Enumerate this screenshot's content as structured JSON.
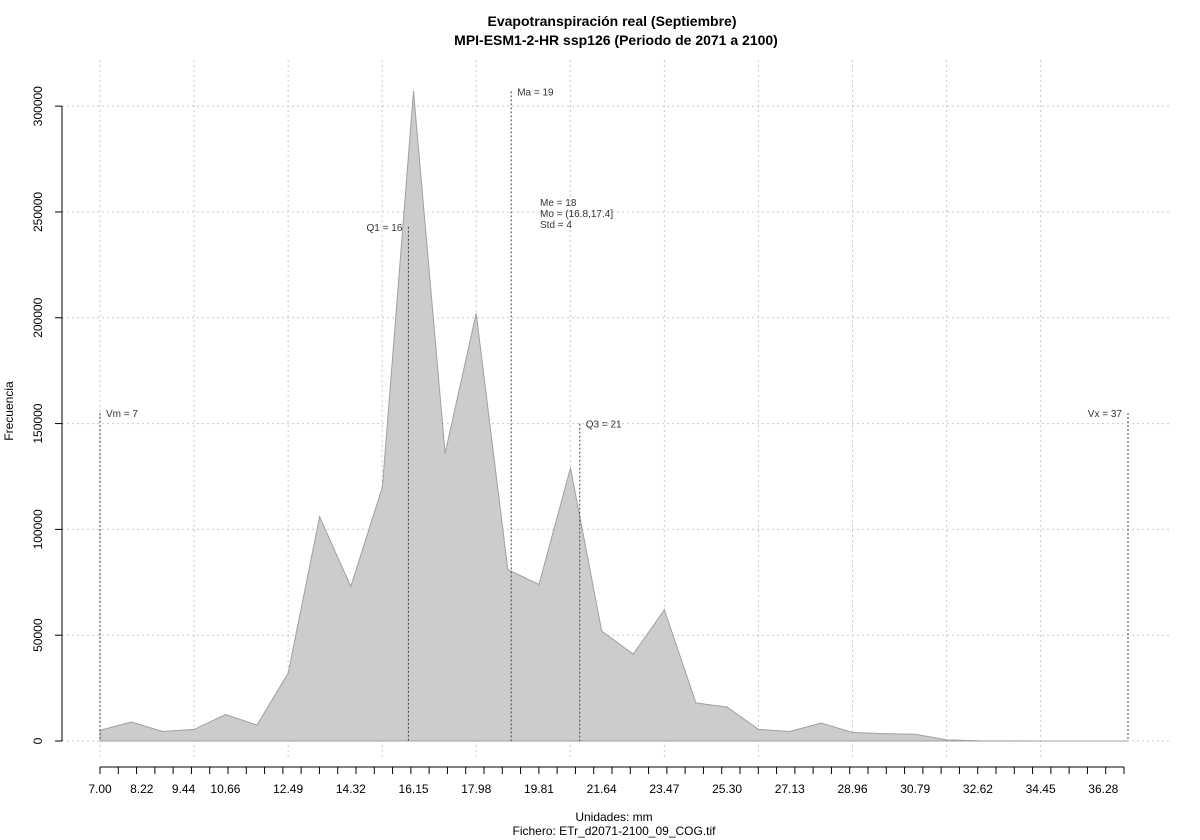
{
  "chart_data": {
    "type": "area",
    "title": "Evapotranspiración real (Septiembre)",
    "subtitle": "MPI-ESM1-2-HR ssp126 (Periodo de 2071 a 2100)",
    "xlabel": "Unidades: mm",
    "xlabel2": "Fichero: ETr_d2071-2100_09_COG.tif",
    "ylabel": "Frecuencia",
    "xlim": [
      7.0,
      37.0
    ],
    "ylim": [
      0,
      310000
    ],
    "x_ticks": [
      "7.00",
      "8.22",
      "9.44",
      "10.66",
      "12.49",
      "14.32",
      "16.15",
      "17.98",
      "19.81",
      "21.64",
      "23.47",
      "25.30",
      "27.13",
      "28.96",
      "30.79",
      "32.62",
      "34.45",
      "36.28"
    ],
    "y_ticks": [
      "0",
      "50000",
      "100000",
      "150000",
      "200000",
      "250000",
      "300000"
    ],
    "grid": true,
    "fill_color": "#cccccc",
    "series": [
      {
        "x": [
          7.0,
          7.92,
          8.83,
          9.75,
          10.66,
          11.58,
          12.49,
          13.41,
          14.32,
          15.24,
          16.15,
          17.07,
          17.98,
          18.9,
          19.81,
          20.73,
          21.64,
          22.56,
          23.47,
          24.39,
          25.3,
          26.22,
          27.13,
          28.05,
          28.96,
          29.88,
          30.79,
          31.71,
          32.62,
          33.54,
          34.45,
          35.37,
          36.28,
          37.0
        ],
        "y": [
          5000,
          9000,
          4500,
          5500,
          12500,
          7500,
          32000,
          106000,
          73000,
          120000,
          307000,
          136000,
          202000,
          81000,
          74000,
          129000,
          52000,
          41000,
          62000,
          18000,
          16000,
          5500,
          4500,
          8500,
          4000,
          3500,
          3200,
          500,
          100,
          50,
          20,
          10,
          5,
          0
        ]
      }
    ],
    "markers": [
      {
        "x": 7.0,
        "label": "Vm = 7",
        "top": 155000,
        "label_side": "right"
      },
      {
        "x": 16.0,
        "label": "Q1 = 16",
        "top": 243000,
        "label_side": "left"
      },
      {
        "x": 19.0,
        "label": "Ma = 19",
        "top": 307000,
        "label_side": "right"
      },
      {
        "x": 21.0,
        "label": "Q3 = 21",
        "top": 150000,
        "label_side": "right"
      },
      {
        "x": 37.0,
        "label": "Vx = 37",
        "top": 155000,
        "label_side": "left"
      }
    ],
    "stats_box": [
      "Me = 18",
      "Mo = (16.8,17.4]",
      "Std = 4"
    ]
  }
}
